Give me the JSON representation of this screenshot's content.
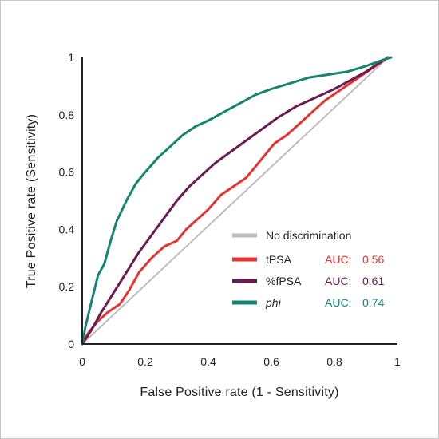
{
  "chart_data": {
    "type": "line",
    "xlabel": "False Positive rate (1 - Sensitivity)",
    "ylabel": "True Positive rate (Sensitivity)",
    "xlim": [
      0,
      1
    ],
    "ylim": [
      0,
      1
    ],
    "x_ticks": [
      "0",
      "0.2",
      "0.4",
      "0.6",
      "0.8",
      "1"
    ],
    "y_ticks": [
      "0",
      "0.2",
      "0.4",
      "0.6",
      "0.8",
      "1"
    ],
    "grid": false,
    "legend_position": "bottom-right",
    "series": [
      {
        "name": "No discrimination",
        "auc_label": "",
        "auc_value": "",
        "color": "#bdbdbd",
        "points": [
          [
            0,
            0
          ],
          [
            0.97,
            1
          ]
        ]
      },
      {
        "name": "tPSA",
        "auc_label": "AUC:",
        "auc_value": "0.56",
        "color": "#e8322d",
        "points": [
          [
            0,
            0
          ],
          [
            0.02,
            0.04
          ],
          [
            0.05,
            0.08
          ],
          [
            0.08,
            0.11
          ],
          [
            0.12,
            0.14
          ],
          [
            0.15,
            0.19
          ],
          [
            0.18,
            0.25
          ],
          [
            0.22,
            0.3
          ],
          [
            0.26,
            0.34
          ],
          [
            0.3,
            0.36
          ],
          [
            0.33,
            0.4
          ],
          [
            0.36,
            0.43
          ],
          [
            0.4,
            0.47
          ],
          [
            0.44,
            0.52
          ],
          [
            0.48,
            0.55
          ],
          [
            0.52,
            0.58
          ],
          [
            0.55,
            0.62
          ],
          [
            0.58,
            0.66
          ],
          [
            0.61,
            0.7
          ],
          [
            0.65,
            0.73
          ],
          [
            0.69,
            0.77
          ],
          [
            0.73,
            0.81
          ],
          [
            0.77,
            0.85
          ],
          [
            0.81,
            0.88
          ],
          [
            0.85,
            0.91
          ],
          [
            0.89,
            0.94
          ],
          [
            0.93,
            0.97
          ],
          [
            0.97,
            1
          ]
        ]
      },
      {
        "name": "%fPSA",
        "auc_label": "AUC:",
        "auc_value": "0.61",
        "color": "#6e1a52",
        "points": [
          [
            0,
            0
          ],
          [
            0.03,
            0.05
          ],
          [
            0.06,
            0.11
          ],
          [
            0.1,
            0.18
          ],
          [
            0.14,
            0.25
          ],
          [
            0.18,
            0.32
          ],
          [
            0.22,
            0.38
          ],
          [
            0.26,
            0.44
          ],
          [
            0.3,
            0.5
          ],
          [
            0.34,
            0.55
          ],
          [
            0.38,
            0.59
          ],
          [
            0.42,
            0.63
          ],
          [
            0.47,
            0.67
          ],
          [
            0.52,
            0.71
          ],
          [
            0.57,
            0.75
          ],
          [
            0.62,
            0.79
          ],
          [
            0.68,
            0.83
          ],
          [
            0.74,
            0.86
          ],
          [
            0.8,
            0.89
          ],
          [
            0.85,
            0.92
          ],
          [
            0.9,
            0.95
          ],
          [
            0.94,
            0.98
          ],
          [
            0.97,
            1
          ]
        ]
      },
      {
        "name": "phi",
        "auc_label": "AUC:",
        "auc_value": "0.74",
        "color": "#13866f",
        "points": [
          [
            0,
            0
          ],
          [
            0.01,
            0.06
          ],
          [
            0.03,
            0.15
          ],
          [
            0.05,
            0.24
          ],
          [
            0.07,
            0.28
          ],
          [
            0.09,
            0.36
          ],
          [
            0.11,
            0.43
          ],
          [
            0.14,
            0.5
          ],
          [
            0.17,
            0.56
          ],
          [
            0.2,
            0.6
          ],
          [
            0.24,
            0.65
          ],
          [
            0.28,
            0.69
          ],
          [
            0.32,
            0.73
          ],
          [
            0.36,
            0.76
          ],
          [
            0.4,
            0.78
          ],
          [
            0.45,
            0.81
          ],
          [
            0.5,
            0.84
          ],
          [
            0.55,
            0.87
          ],
          [
            0.6,
            0.89
          ],
          [
            0.66,
            0.91
          ],
          [
            0.72,
            0.93
          ],
          [
            0.78,
            0.94
          ],
          [
            0.84,
            0.95
          ],
          [
            0.9,
            0.97
          ],
          [
            0.95,
            0.99
          ],
          [
            0.98,
            1
          ]
        ]
      }
    ]
  }
}
